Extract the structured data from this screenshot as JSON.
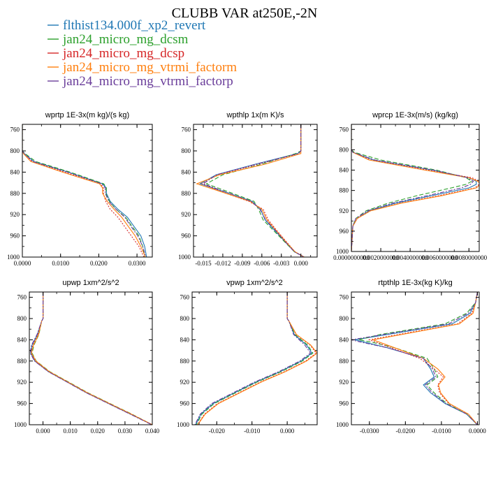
{
  "figure": {
    "title": "CLUBB VAR at250E,-2N"
  },
  "legend": [
    {
      "name": "flthist134.000f_xp2_revert",
      "color": "#1f77b4",
      "dash": "solid"
    },
    {
      "name": "jan24_micro_mg_dcsm",
      "color": "#2ca02c",
      "dash": "dash"
    },
    {
      "name": "jan24_micro_mg_dcsp",
      "color": "#d62728",
      "dash": "dot"
    },
    {
      "name": "jan24_micro_mg_vtrmi_factorm",
      "color": "#ff7f0e",
      "dash": "solid"
    },
    {
      "name": "jan24_micro_mg_vtrmi_factorp",
      "color": "#6a3d9a",
      "dash": "dashdot"
    }
  ],
  "chart_data": [
    {
      "type": "line",
      "title": "wprtp  1E-3x(m kg)/(s kg)",
      "xlim": [
        0,
        0.034
      ],
      "ylim": [
        750,
        1000
      ],
      "x_ticks": [
        "0.0000",
        "0.0100",
        "0.0200",
        "0.0300"
      ],
      "x_tick_values": [
        0,
        0.01,
        0.02,
        0.03
      ],
      "y_ticks": [
        760,
        800,
        840,
        880,
        920,
        960,
        1000
      ],
      "y": [
        750,
        800,
        805,
        820,
        840,
        862,
        870,
        880,
        895,
        910,
        925,
        940,
        960,
        980,
        1000
      ],
      "series": [
        {
          "values": [
            0,
            0,
            0.0005,
            0.003,
            0.012,
            0.021,
            0.022,
            0.022,
            0.023,
            0.025,
            0.0275,
            0.029,
            0.031,
            0.032,
            0.0325
          ]
        },
        {
          "values": [
            0,
            0,
            0.0007,
            0.0035,
            0.0125,
            0.0213,
            0.022,
            0.0218,
            0.0228,
            0.0245,
            0.027,
            0.0285,
            0.0305,
            0.0315,
            0.032
          ]
        },
        {
          "values": [
            0,
            0,
            0.0004,
            0.0025,
            0.011,
            0.0205,
            0.0212,
            0.0212,
            0.0218,
            0.023,
            0.025,
            0.0265,
            0.0285,
            0.0305,
            0.0318
          ]
        },
        {
          "values": [
            0,
            0,
            0.0003,
            0.0022,
            0.0105,
            0.0202,
            0.021,
            0.021,
            0.0222,
            0.024,
            0.026,
            0.0275,
            0.0295,
            0.031,
            0.0322
          ]
        },
        {
          "values": [
            0,
            0,
            0.0005,
            0.0028,
            0.0118,
            0.0208,
            0.0217,
            0.0217,
            0.0226,
            0.0245,
            0.0268,
            0.0282,
            0.0302,
            0.0315,
            0.0323
          ]
        }
      ]
    },
    {
      "type": "line",
      "title": "wpthlp  1x(m K)/s",
      "xlim": [
        -0.0165,
        0.0025
      ],
      "ylim": [
        750,
        1000
      ],
      "x_ticks": [
        "-0.015",
        "-0.012",
        "-0.009",
        "-0.006",
        "-0.003",
        "0.000"
      ],
      "x_tick_values": [
        -0.015,
        -0.012,
        -0.009,
        -0.006,
        -0.003,
        0
      ],
      "y_ticks": [
        760,
        800,
        840,
        880,
        920,
        960,
        1000
      ],
      "y": [
        750,
        800,
        805,
        825,
        845,
        862,
        880,
        895,
        910,
        930,
        950,
        970,
        990,
        1000
      ],
      "series": [
        {
          "values": [
            0,
            0,
            -0.0005,
            -0.007,
            -0.013,
            -0.0155,
            -0.011,
            -0.0075,
            -0.0062,
            -0.0055,
            -0.004,
            -0.0025,
            -0.001,
            0.0005
          ]
        },
        {
          "values": [
            0,
            0,
            -0.0008,
            -0.006,
            -0.012,
            -0.0145,
            -0.0105,
            -0.0072,
            -0.0065,
            -0.0058,
            -0.0042,
            -0.0026,
            -0.001,
            0.0005
          ]
        },
        {
          "values": [
            0,
            0,
            -0.0003,
            -0.0065,
            -0.0128,
            -0.0152,
            -0.0115,
            -0.008,
            -0.0058,
            -0.005,
            -0.0037,
            -0.0023,
            -0.0009,
            0.0005
          ]
        },
        {
          "values": [
            0,
            0,
            0,
            -0.0055,
            -0.0125,
            -0.016,
            -0.0115,
            -0.0078,
            -0.006,
            -0.0052,
            -0.0038,
            -0.0024,
            -0.0009,
            0.0005
          ]
        },
        {
          "values": [
            0,
            0,
            -0.0004,
            -0.0068,
            -0.013,
            -0.015,
            -0.011,
            -0.0076,
            -0.0063,
            -0.0054,
            -0.0039,
            -0.0025,
            -0.001,
            0.0005
          ]
        }
      ]
    },
    {
      "type": "line",
      "title": "wprcp  1E-3x(m/s) (kg/kg)",
      "xlim": [
        0,
        0.0087
      ],
      "ylim": [
        750,
        1000
      ],
      "x_ticks": [
        "0.0000000000",
        "0.0020000000",
        "0.0040000000",
        "0.0060000000",
        "0.0080000000"
      ],
      "x_tick_values": [
        0,
        0.002,
        0.004,
        0.006,
        0.008
      ],
      "y_ticks": [
        760,
        800,
        840,
        880,
        920,
        960,
        1000
      ],
      "y": [
        750,
        800,
        805,
        820,
        840,
        855,
        862,
        868,
        875,
        890,
        905,
        920,
        935,
        950,
        1000
      ],
      "series": [
        {
          "values": [
            0,
            0,
            0.0001,
            0.0015,
            0.0055,
            0.008,
            0.0085,
            0.0085,
            0.008,
            0.0055,
            0.003,
            0.0012,
            0.0004,
            0.0001,
            0
          ]
        },
        {
          "values": [
            0,
            0,
            0.0002,
            0.002,
            0.0058,
            0.0078,
            0.0082,
            0.0078,
            0.0068,
            0.0045,
            0.0025,
            0.001,
            0.0003,
            0.0001,
            0
          ]
        },
        {
          "values": [
            0,
            0,
            0.0001,
            0.0013,
            0.0052,
            0.0082,
            0.0087,
            0.0087,
            0.0084,
            0.006,
            0.0033,
            0.0013,
            0.0004,
            0.0001,
            0
          ]
        },
        {
          "values": [
            0,
            0,
            0.0001,
            0.0012,
            0.005,
            0.008,
            0.0086,
            0.0088,
            0.0085,
            0.0062,
            0.0034,
            0.0013,
            0.0004,
            0.0001,
            0
          ]
        },
        {
          "values": [
            0,
            0,
            0.0001,
            0.0016,
            0.0056,
            0.0079,
            0.0083,
            0.0081,
            0.0075,
            0.0052,
            0.0028,
            0.0011,
            0.0003,
            0.0001,
            0
          ]
        }
      ]
    },
    {
      "type": "line",
      "title": "upwp  1xm^2/s^2",
      "xlim": [
        -0.005,
        0.04
      ],
      "ylim": [
        750,
        1000
      ],
      "x_ticks": [
        "0.000",
        "0.010",
        "0.020",
        "0.030",
        "0.040"
      ],
      "x_tick_values": [
        0,
        0.01,
        0.02,
        0.03,
        0.04
      ],
      "y_ticks": [
        760,
        800,
        840,
        880,
        920,
        960,
        1000
      ],
      "y": [
        750,
        800,
        805,
        830,
        850,
        865,
        880,
        900,
        920,
        940,
        960,
        980,
        1000
      ],
      "series": [
        {
          "values": [
            0,
            0,
            -0.0005,
            -0.002,
            -0.004,
            -0.0045,
            -0.003,
            0.002,
            0.009,
            0.016,
            0.024,
            0.032,
            0.04
          ]
        },
        {
          "values": [
            0,
            0,
            -0.0005,
            -0.0015,
            -0.0033,
            -0.004,
            -0.0025,
            0.0025,
            0.0095,
            0.0165,
            0.0245,
            0.0325,
            0.04
          ]
        },
        {
          "values": [
            0,
            0,
            -0.0005,
            -0.0018,
            -0.0037,
            -0.0043,
            -0.0028,
            0.0022,
            0.0092,
            0.0162,
            0.0242,
            0.0322,
            0.04
          ]
        },
        {
          "values": [
            0,
            0,
            -0.0005,
            -0.0016,
            -0.0035,
            -0.0042,
            -0.0026,
            0.0023,
            0.0093,
            0.0163,
            0.0243,
            0.0323,
            0.04
          ]
        },
        {
          "values": [
            0,
            0,
            -0.0005,
            -0.0022,
            -0.0042,
            -0.0047,
            -0.0031,
            0.0019,
            0.0089,
            0.0159,
            0.0239,
            0.0319,
            0.0398
          ]
        }
      ]
    },
    {
      "type": "line",
      "title": "vpwp  1xm^2/s^2",
      "xlim": [
        -0.027,
        0.0085
      ],
      "ylim": [
        750,
        1000
      ],
      "x_ticks": [
        "-0.020",
        "-0.010",
        "0.000"
      ],
      "x_tick_values": [
        -0.02,
        -0.01,
        0
      ],
      "y_ticks": [
        760,
        800,
        840,
        880,
        920,
        960,
        1000
      ],
      "y": [
        750,
        800,
        805,
        830,
        850,
        865,
        880,
        900,
        920,
        940,
        960,
        980,
        1000
      ],
      "series": [
        {
          "values": [
            0,
            0,
            0.0005,
            0.002,
            0.0055,
            0.007,
            0.004,
            -0.002,
            -0.009,
            -0.015,
            -0.021,
            -0.0245,
            -0.026
          ]
        },
        {
          "values": [
            0,
            0,
            0.0005,
            0.0022,
            0.0058,
            0.0073,
            0.0043,
            -0.0017,
            -0.0087,
            -0.0147,
            -0.0207,
            -0.0242,
            -0.0258
          ]
        },
        {
          "values": [
            0,
            0,
            0.0005,
            0.0025,
            0.0065,
            0.0082,
            0.0052,
            -0.0008,
            -0.0078,
            -0.0138,
            -0.0198,
            -0.0235,
            -0.0255
          ]
        },
        {
          "values": [
            0,
            0,
            0.0005,
            0.0026,
            0.0067,
            0.0085,
            0.0055,
            -0.0005,
            -0.0075,
            -0.0135,
            -0.0195,
            -0.0233,
            -0.0254
          ]
        },
        {
          "values": [
            0,
            0,
            0.0005,
            0.0018,
            0.005,
            0.0066,
            0.0036,
            -0.0024,
            -0.0094,
            -0.0154,
            -0.0214,
            -0.0247,
            -0.0262
          ]
        }
      ]
    },
    {
      "type": "line",
      "title": "rtpthlp  1E-3x(kg K)/kg",
      "xlim": [
        -0.035,
        0.0005
      ],
      "ylim": [
        750,
        1000
      ],
      "x_ticks": [
        "-0.0300",
        "-0.0200",
        "-0.0100",
        "0.0000"
      ],
      "x_tick_values": [
        -0.03,
        -0.02,
        -0.01,
        0
      ],
      "y_ticks": [
        760,
        800,
        840,
        880,
        920,
        960,
        1000
      ],
      "y": [
        750,
        770,
        790,
        810,
        830,
        840,
        845,
        855,
        875,
        895,
        910,
        925,
        940,
        960,
        980,
        1000
      ],
      "series": [
        {
          "values": [
            0,
            -0.0005,
            -0.002,
            -0.007,
            -0.025,
            -0.034,
            -0.031,
            -0.025,
            -0.015,
            -0.013,
            -0.012,
            -0.015,
            -0.013,
            -0.009,
            -0.003,
            0
          ]
        },
        {
          "values": [
            0,
            -0.0005,
            -0.003,
            -0.009,
            -0.027,
            -0.033,
            -0.029,
            -0.023,
            -0.014,
            -0.012,
            -0.011,
            -0.014,
            -0.012,
            -0.0085,
            -0.003,
            0
          ]
        },
        {
          "values": [
            0,
            -0.0005,
            -0.0015,
            -0.0055,
            -0.022,
            -0.03,
            -0.028,
            -0.024,
            -0.016,
            -0.012,
            -0.0095,
            -0.011,
            -0.0105,
            -0.008,
            -0.0025,
            0
          ]
        },
        {
          "values": [
            0,
            -0.0005,
            -0.0012,
            -0.005,
            -0.021,
            -0.029,
            -0.027,
            -0.023,
            -0.015,
            -0.011,
            -0.009,
            -0.0108,
            -0.0102,
            -0.0078,
            -0.0025,
            0
          ]
        },
        {
          "values": [
            0,
            -0.0005,
            -0.0025,
            -0.008,
            -0.026,
            -0.035,
            -0.032,
            -0.025,
            -0.015,
            -0.0125,
            -0.0115,
            -0.0145,
            -0.0125,
            -0.0088,
            -0.003,
            0
          ]
        }
      ]
    }
  ]
}
